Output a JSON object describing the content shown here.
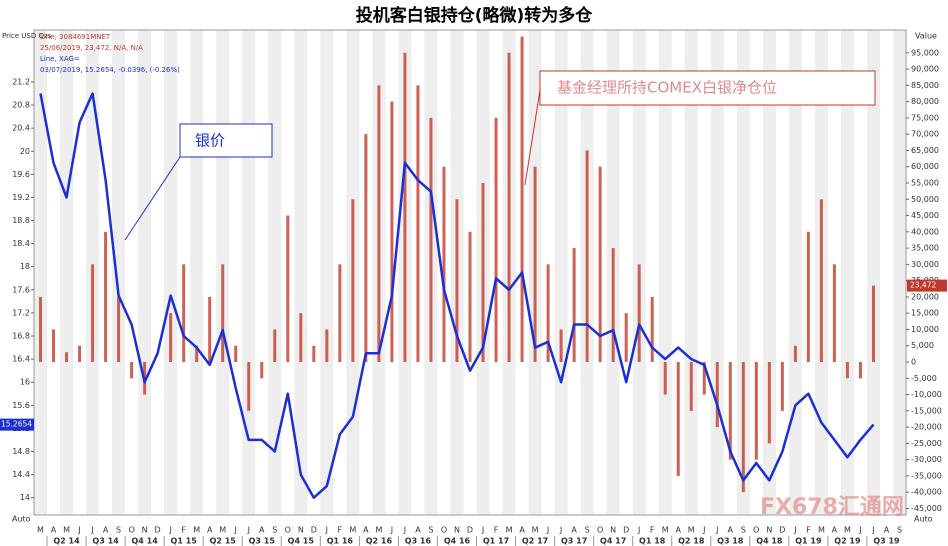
{
  "chart_data": {
    "type": "bar-line",
    "title": "投机客白银持仓(略微)转为多仓",
    "y_axis_label": "Price USD Ozs",
    "y2_axis_label": "Value",
    "annotations": [
      "银价",
      "基金经理所持COMEX白银净仓位"
    ],
    "legend_details": [
      "25/06/2019, 23,472, N/A, N/A",
      "03/07/2019, 15.2654, -0.0396, (-0.26%)"
    ],
    "buttons": [
      "Auto",
      "Auto"
    ],
    "watermark": "FX678汇通网",
    "categories": [
      "M",
      "A",
      "M",
      "J",
      "J",
      "A",
      "S",
      "O",
      "N",
      "D",
      "J",
      "F",
      "M",
      "A",
      "M",
      "J",
      "J",
      "A",
      "S",
      "O",
      "N",
      "D",
      "J",
      "F",
      "M",
      "A",
      "M",
      "J",
      "J",
      "A",
      "S",
      "O",
      "N",
      "D",
      "J",
      "F",
      "M",
      "A",
      "M",
      "J",
      "J",
      "A",
      "S",
      "O",
      "N",
      "D",
      "J",
      "F",
      "M",
      "A",
      "M",
      "J",
      "J",
      "A",
      "S",
      "O",
      "N",
      "D",
      "J",
      "F",
      "M",
      "A",
      "M",
      "J",
      "J",
      "A",
      "S"
    ],
    "quarters": [
      "Q2 14",
      "Q3 14",
      "Q4 14",
      "Q1 15",
      "Q2 15",
      "Q3 15",
      "Q4 15",
      "Q1 16",
      "Q2 16",
      "Q3 16",
      "Q4 16",
      "Q1 17",
      "Q2 17",
      "Q3 17",
      "Q4 17",
      "Q1 18",
      "Q2 18",
      "Q3 18",
      "Q4 18",
      "Q1 19",
      "Q2 19",
      "Q3 19"
    ],
    "series": [
      {
        "name": "Line, 3084691MNET",
        "color": "#c0392b",
        "axis": "y2",
        "kind": "bar",
        "last_label": "23,472",
        "values": [
          20000,
          10000,
          3000,
          5000,
          30000,
          40000,
          20000,
          -5000,
          -10000,
          0,
          15000,
          30000,
          5000,
          20000,
          30000,
          5000,
          -15000,
          -5000,
          10000,
          45000,
          15000,
          5000,
          10000,
          30000,
          50000,
          70000,
          85000,
          80000,
          95000,
          85000,
          75000,
          60000,
          50000,
          40000,
          55000,
          75000,
          95000,
          100000,
          60000,
          30000,
          10000,
          35000,
          65000,
          60000,
          35000,
          15000,
          30000,
          20000,
          -10000,
          -35000,
          -15000,
          -10000,
          -20000,
          -30000,
          -40000,
          -30000,
          -25000,
          -15000,
          5000,
          40000,
          50000,
          30000,
          -5000,
          -5000,
          23472,
          null,
          null
        ]
      },
      {
        "name": "Line, XAG=",
        "color": "#1a2fd6",
        "axis": "y",
        "kind": "line",
        "last_label": "15.2654",
        "values": [
          21.0,
          19.8,
          19.2,
          20.5,
          21.0,
          19.5,
          17.5,
          17.0,
          16.0,
          16.5,
          17.5,
          16.8,
          16.6,
          16.3,
          16.9,
          15.9,
          15.0,
          15.0,
          14.8,
          15.8,
          14.4,
          14.0,
          14.2,
          15.1,
          15.4,
          16.5,
          16.5,
          17.5,
          19.8,
          19.5,
          19.3,
          17.6,
          16.8,
          16.2,
          16.6,
          17.8,
          17.6,
          17.9,
          16.6,
          16.7,
          16.0,
          17.0,
          17.0,
          16.8,
          16.9,
          16.0,
          17.0,
          16.6,
          16.4,
          16.6,
          16.4,
          16.3,
          15.6,
          14.8,
          14.3,
          14.6,
          14.3,
          14.8,
          15.6,
          15.8,
          15.3,
          15.0,
          14.7,
          15.0,
          15.2654,
          null,
          null
        ]
      }
    ],
    "ylim": [
      13.7,
      22.1
    ],
    "yticks": [
      14,
      14.4,
      14.8,
      15.2,
      15.6,
      16,
      16.4,
      16.8,
      17.2,
      17.6,
      18,
      18.4,
      18.8,
      19.2,
      19.6,
      20,
      20.4,
      20.8,
      21.2
    ],
    "y2lim": [
      -47000,
      102000
    ],
    "y2ticks": [
      {
        "value": -45000,
        "label": "-45,000"
      },
      {
        "value": -40000,
        "label": "-40,000"
      },
      {
        "value": -35000,
        "label": "-35,000"
      },
      {
        "value": -30000,
        "label": "-30,000"
      },
      {
        "value": -25000,
        "label": "-25,000"
      },
      {
        "value": -20000,
        "label": "-20,000"
      },
      {
        "value": -15000,
        "label": "-15,000"
      },
      {
        "value": -10000,
        "label": "-10,000"
      },
      {
        "value": -5000,
        "label": "-5,000"
      },
      0,
      {
        "value": 5000,
        "label": "5,000"
      },
      {
        "value": 10000,
        "label": "10,000"
      },
      {
        "value": 15000,
        "label": "15,000"
      },
      {
        "value": 20000,
        "label": "20,000"
      },
      {
        "value": 25000,
        "label": "25,000"
      },
      {
        "value": 30000,
        "label": "30,000"
      },
      {
        "value": 35000,
        "label": "35,000"
      },
      {
        "value": 40000,
        "label": "40,000"
      },
      {
        "value": 45000,
        "label": "45,000"
      },
      {
        "value": 50000,
        "label": "50,000"
      },
      {
        "value": 55000,
        "label": "55,000"
      },
      {
        "value": 60000,
        "label": "60,000"
      },
      {
        "value": 65000,
        "label": "65,000"
      },
      {
        "value": 70000,
        "label": "70,000"
      },
      {
        "value": 75000,
        "label": "75,000"
      },
      {
        "value": 80000,
        "label": "80,000"
      },
      {
        "value": 85000,
        "label": "85,000"
      },
      {
        "value": 90000,
        "label": "90,000"
      },
      {
        "value": 95000,
        "label": "95,000"
      }
    ]
  }
}
